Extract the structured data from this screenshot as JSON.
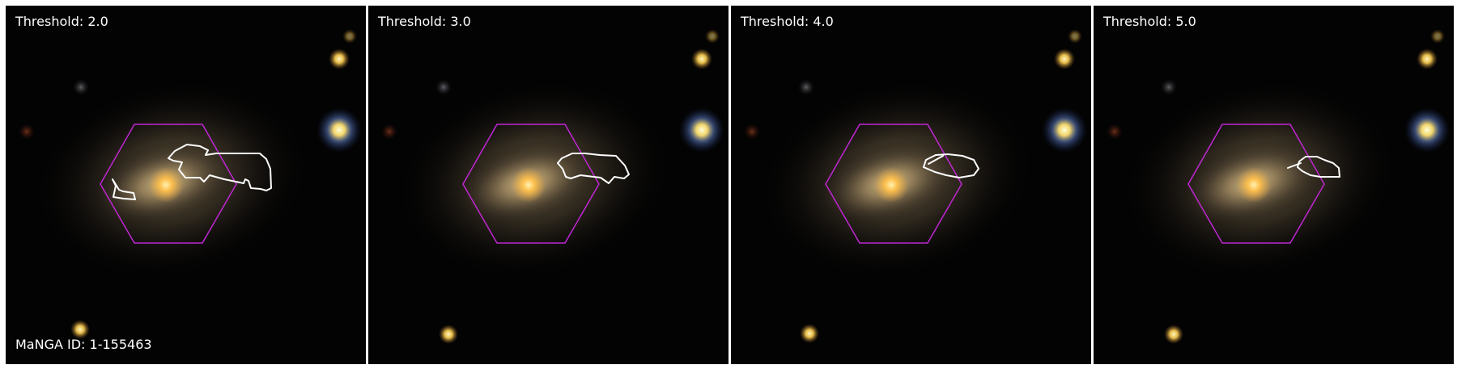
{
  "figure": {
    "manga_label": "MaNGA ID: 1-155463",
    "panels": [
      {
        "label": "Threshold: 2.0"
      },
      {
        "label": "Threshold: 3.0"
      },
      {
        "label": "Threshold: 4.0"
      },
      {
        "label": "Threshold: 5.0"
      }
    ]
  },
  "colors": {
    "background": "#020202",
    "hexagon": "#c026d3",
    "contour": "#ffffff",
    "galaxy_core": "#ffbf4a",
    "galaxy_halo": "#c8b078",
    "star_yellow": "#ffd050",
    "star_blue_halo": "#3c5aa0"
  }
}
